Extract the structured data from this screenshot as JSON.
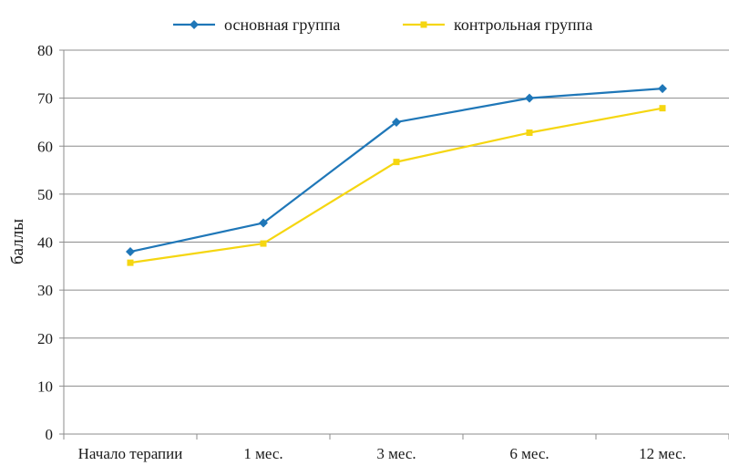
{
  "chart_data": {
    "type": "line",
    "title": "",
    "xlabel": "",
    "ylabel": "баллы",
    "ylim": [
      0,
      80
    ],
    "yticks": [
      0,
      10,
      20,
      30,
      40,
      50,
      60,
      70,
      80
    ],
    "grid": true,
    "legend": "top",
    "categories": [
      "Начало терапии",
      "1 мес.",
      "3 мес.",
      "6 мес.",
      "12 мес."
    ],
    "series": [
      {
        "name": "основная группа",
        "color": "#1f77b8",
        "marker": "diamond",
        "values": [
          38,
          44,
          65,
          70,
          72
        ]
      },
      {
        "name": "контрольная группа",
        "color": "#f5d611",
        "marker": "square",
        "values": [
          35.7,
          39.7,
          56.7,
          62.8,
          67.9
        ]
      }
    ]
  }
}
